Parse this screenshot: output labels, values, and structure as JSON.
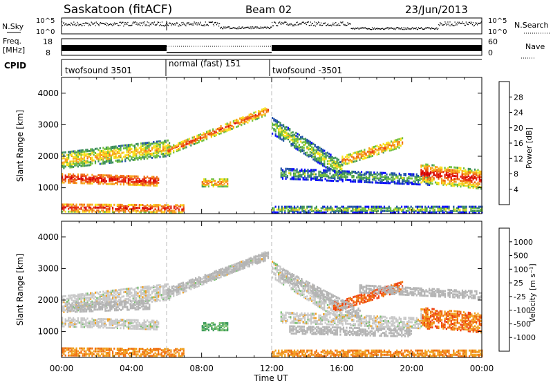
{
  "header": {
    "site": "Saskatoon (fitACF)",
    "beam": "Beam 02",
    "date": "23/Jun/2013"
  },
  "panels": {
    "nsky": {
      "left_label": "N.Sky",
      "left_ticks": [
        "10^5",
        "10^0"
      ],
      "right_label": "N.Search",
      "right_ticks": [
        "10^5",
        "10^0"
      ]
    },
    "freq": {
      "left_label_1": "Freq.",
      "left_label_2": "[MHz]",
      "left_ticks": [
        "18",
        "8"
      ],
      "right_label": "Nave",
      "right_ticks": [
        "60",
        "0"
      ]
    },
    "cpid": {
      "label": "CPID",
      "modes": [
        "twofsound 3501",
        "normal (fast) 151",
        "twofsound -3501"
      ]
    }
  },
  "colors": {
    "power": [
      "#0000ff",
      "#1f4fa8",
      "#3d8f5a",
      "#6fbf3a",
      "#f7e21a",
      "#f7a21a",
      "#ee6a14",
      "#e62a0e",
      "#d60000"
    ],
    "velocity": [
      "#2a3fa8",
      "#2f7fb0",
      "#3a9a5a",
      "#7ac070",
      "#c8c8c8",
      "#c8c8c8",
      "#f0a020",
      "#f07010",
      "#ee4010",
      "#e00000"
    ],
    "ground_scatter": "#b4b4b4"
  },
  "chart_data": [
    {
      "type": "heatmap",
      "title": "",
      "ylabel": "Slant Range [km]",
      "xlabel": "",
      "ylim": [
        180,
        4500
      ],
      "y_ticks": [
        "1000",
        "2000",
        "3000",
        "4000"
      ],
      "x_ticks": [
        "00:00",
        "04:00",
        "08:00",
        "12:00",
        "16:00",
        "20:00",
        "00:00"
      ],
      "colorbar": {
        "label": "Power [dB]",
        "ticks": [
          "28",
          "24",
          "20",
          "16",
          "12",
          "8",
          "4"
        ]
      }
    },
    {
      "type": "heatmap",
      "title": "",
      "ylabel": "Slant Range [km]",
      "xlabel": "Time UT",
      "ylim": [
        180,
        4500
      ],
      "y_ticks": [
        "1000",
        "2000",
        "3000",
        "4000"
      ],
      "x_ticks": [
        "00:00",
        "04:00",
        "08:00",
        "12:00",
        "16:00",
        "20:00",
        "00:00"
      ],
      "colorbar": {
        "label": "Velocity [m s⁻¹]",
        "ticks": [
          "1000",
          "500",
          "100",
          "25",
          "-25",
          "-100",
          "-500",
          "-1000"
        ]
      }
    }
  ]
}
